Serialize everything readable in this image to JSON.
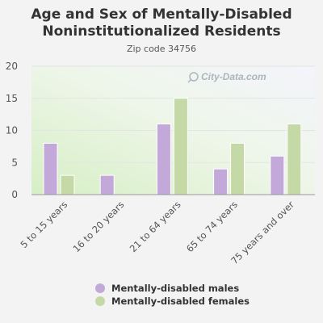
{
  "chart_data": {
    "type": "bar",
    "title": "Age and Sex of Mentally-Disabled Noninstitutionalized Residents",
    "subtitle": "Zip code 34756",
    "categories": [
      "5 to 15 years",
      "16 to 20 years",
      "21 to 64 years",
      "65 to 74 years",
      "75 years and over"
    ],
    "series": [
      {
        "name": "Mentally-disabled males",
        "values": [
          8,
          3,
          11,
          4,
          6
        ],
        "color": "#c3a8da"
      },
      {
        "name": "Mentally-disabled females",
        "values": [
          3,
          0,
          15,
          8,
          11
        ],
        "color": "#c4d9a6"
      }
    ],
    "ylim": [
      0,
      20
    ],
    "yticks": [
      0,
      5,
      10,
      15,
      20
    ],
    "grid": true,
    "legend_position": "bottom"
  },
  "watermark": "City-Data.com"
}
